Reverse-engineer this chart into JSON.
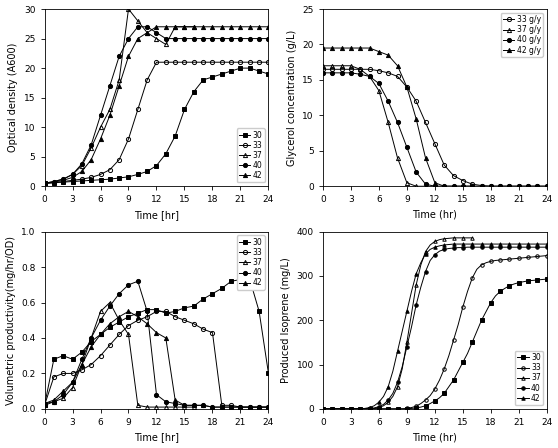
{
  "od_data": {
    "30": {
      "time": [
        0,
        1,
        2,
        3,
        4,
        5,
        6,
        7,
        8,
        9,
        10,
        11,
        12,
        13,
        14,
        15,
        16,
        17,
        18,
        19,
        20,
        21,
        22,
        23,
        24
      ],
      "od": [
        0.5,
        0.6,
        0.7,
        0.8,
        0.9,
        1.0,
        1.1,
        1.2,
        1.4,
        1.6,
        2.0,
        2.5,
        3.5,
        5.5,
        8.5,
        13,
        16,
        18,
        18.5,
        19,
        19.5,
        20,
        20,
        19.5,
        19
      ]
    },
    "33": {
      "time": [
        0,
        1,
        2,
        3,
        4,
        5,
        6,
        7,
        8,
        9,
        10,
        11,
        12,
        13,
        14,
        15,
        16,
        17,
        18,
        19,
        20,
        21,
        22,
        23,
        24
      ],
      "od": [
        0.5,
        0.6,
        0.8,
        1.0,
        1.2,
        1.5,
        2.0,
        2.8,
        4.5,
        8.0,
        13,
        18,
        21,
        21,
        21,
        21,
        21,
        21,
        21,
        21,
        21,
        21,
        21,
        21,
        21
      ]
    },
    "37": {
      "time": [
        0,
        1,
        2,
        3,
        4,
        5,
        6,
        7,
        8,
        9,
        10,
        11,
        12,
        13,
        14,
        15,
        16
      ],
      "od": [
        0.5,
        0.8,
        1.2,
        2.0,
        3.5,
        6.5,
        10,
        13,
        18,
        30,
        28,
        26,
        25,
        24,
        27,
        27,
        27
      ]
    },
    "40": {
      "time": [
        0,
        1,
        2,
        3,
        4,
        5,
        6,
        7,
        8,
        9,
        10,
        11,
        12,
        13,
        14,
        15,
        16,
        17,
        18,
        19,
        20,
        21,
        22,
        23,
        24
      ],
      "od": [
        0.5,
        0.8,
        1.2,
        2.0,
        3.8,
        7.0,
        12,
        17,
        22,
        25,
        27,
        27,
        26,
        25,
        25,
        25,
        25,
        25,
        25,
        25,
        25,
        25,
        25,
        25,
        25
      ]
    },
    "42": {
      "time": [
        0,
        1,
        2,
        3,
        4,
        5,
        6,
        7,
        8,
        9,
        10,
        11,
        12,
        13,
        14,
        15,
        16,
        17,
        18,
        19,
        20,
        21,
        22,
        23,
        24
      ],
      "od": [
        0.5,
        0.7,
        1.0,
        1.5,
        2.5,
        4.5,
        8.0,
        12,
        17,
        22,
        25,
        26,
        27,
        27,
        27,
        27,
        27,
        27,
        27,
        27,
        27,
        27,
        27,
        27,
        27
      ]
    }
  },
  "glycerol_data": {
    "33": {
      "time": [
        0,
        1,
        2,
        3,
        4,
        5,
        6,
        7,
        8,
        9,
        10,
        11,
        12,
        13,
        14,
        15,
        16,
        17,
        18,
        19,
        20,
        21,
        22,
        23,
        24
      ],
      "gly": [
        16.5,
        16.5,
        16.5,
        16.5,
        16.5,
        16.5,
        16.3,
        16.0,
        15.5,
        14.0,
        12.0,
        9.0,
        6.0,
        3.0,
        1.5,
        0.8,
        0.3,
        0.1,
        0.0,
        0.0,
        0.0,
        0.0,
        0.0,
        0.0,
        0.0
      ]
    },
    "37": {
      "time": [
        0,
        1,
        2,
        3,
        4,
        5,
        6,
        7,
        8,
        9,
        10,
        11,
        12,
        13,
        14,
        15,
        16
      ],
      "gly": [
        17.0,
        17.0,
        17.0,
        17.0,
        16.5,
        15.5,
        13.5,
        9.0,
        4.0,
        0.5,
        0.0,
        0.0,
        0.0,
        0.0,
        0.0,
        0.0,
        0.0
      ]
    },
    "40": {
      "time": [
        0,
        1,
        2,
        3,
        4,
        5,
        6,
        7,
        8,
        9,
        10,
        11,
        12,
        13,
        14,
        15,
        16,
        17,
        18,
        19,
        20,
        21,
        22,
        23,
        24
      ],
      "gly": [
        16.0,
        16.0,
        16.0,
        16.0,
        15.8,
        15.5,
        14.5,
        12.0,
        9.0,
        5.5,
        2.0,
        0.3,
        0.0,
        0.0,
        0.0,
        0.0,
        0.0,
        0.0,
        0.0,
        0.0,
        0.0,
        0.0,
        0.0,
        0.0,
        0.0
      ]
    },
    "42": {
      "time": [
        0,
        1,
        2,
        3,
        4,
        5,
        6,
        7,
        8,
        9,
        10,
        11,
        12,
        13,
        14,
        15,
        16,
        17,
        18,
        19,
        20,
        21,
        22,
        23,
        24
      ],
      "gly": [
        19.5,
        19.5,
        19.5,
        19.5,
        19.5,
        19.5,
        19.0,
        18.5,
        17.0,
        14.0,
        9.5,
        4.0,
        0.5,
        0.0,
        0.0,
        0.0,
        0.0,
        0.0,
        0.0,
        0.0,
        0.0,
        0.0,
        0.0,
        0.0,
        0.0
      ]
    }
  },
  "vp_data": {
    "30": {
      "time": [
        0,
        1,
        2,
        3,
        4,
        5,
        6,
        7,
        8,
        9,
        10,
        11,
        12,
        13,
        14,
        15,
        16,
        17,
        18,
        19,
        20,
        21,
        22,
        23,
        24
      ],
      "vp": [
        0.02,
        0.28,
        0.3,
        0.28,
        0.32,
        0.38,
        0.42,
        0.46,
        0.49,
        0.52,
        0.54,
        0.56,
        0.56,
        0.54,
        0.55,
        0.57,
        0.58,
        0.62,
        0.65,
        0.68,
        0.72,
        0.73,
        0.73,
        0.55,
        0.2
      ]
    },
    "33": {
      "time": [
        0,
        1,
        2,
        3,
        4,
        5,
        6,
        7,
        8,
        9,
        10,
        11,
        12,
        13,
        14,
        15,
        16,
        17,
        18,
        19,
        20,
        21,
        22,
        23,
        24
      ],
      "vp": [
        0.02,
        0.18,
        0.2,
        0.2,
        0.22,
        0.25,
        0.3,
        0.36,
        0.42,
        0.47,
        0.5,
        0.52,
        0.55,
        0.55,
        0.52,
        0.5,
        0.48,
        0.45,
        0.43,
        0.02,
        0.02,
        0.01,
        0.01,
        0.01,
        0.01
      ]
    },
    "37": {
      "time": [
        0,
        1,
        2,
        3,
        4,
        5,
        6,
        7,
        8,
        9,
        10,
        11,
        12,
        13,
        14,
        15,
        16
      ],
      "vp": [
        0.02,
        0.04,
        0.06,
        0.12,
        0.25,
        0.4,
        0.55,
        0.6,
        0.5,
        0.42,
        0.02,
        0.01,
        0.01,
        0.01,
        0.01,
        0.01,
        0.01
      ]
    },
    "40": {
      "time": [
        0,
        1,
        2,
        3,
        4,
        5,
        6,
        7,
        8,
        9,
        10,
        11,
        12,
        13,
        14,
        15,
        16,
        17,
        18,
        19,
        20,
        21,
        22,
        23,
        24
      ],
      "vp": [
        0.03,
        0.04,
        0.08,
        0.15,
        0.28,
        0.4,
        0.5,
        0.58,
        0.65,
        0.7,
        0.72,
        0.55,
        0.08,
        0.04,
        0.03,
        0.02,
        0.02,
        0.02,
        0.01,
        0.01,
        0.01,
        0.01,
        0.01,
        0.01,
        0.01
      ]
    },
    "42": {
      "time": [
        0,
        1,
        2,
        3,
        4,
        5,
        6,
        7,
        8,
        9,
        10,
        11,
        12,
        13,
        14,
        15,
        16,
        17,
        18,
        19,
        20,
        21,
        22,
        23,
        24
      ],
      "vp": [
        0.03,
        0.05,
        0.1,
        0.15,
        0.25,
        0.35,
        0.42,
        0.48,
        0.52,
        0.55,
        0.52,
        0.48,
        0.43,
        0.4,
        0.05,
        0.02,
        0.02,
        0.02,
        0.01,
        0.01,
        0.01,
        0.01,
        0.01,
        0.01,
        0.01
      ]
    }
  },
  "isoprene_data": {
    "30": {
      "time": [
        0,
        0.5,
        1,
        1.5,
        2,
        2.5,
        3,
        3.5,
        4,
        4.5,
        5,
        5.5,
        6,
        6.5,
        7,
        7.5,
        8,
        8.5,
        9,
        9.5,
        10,
        10.5,
        11,
        11.5,
        12,
        12.5,
        13,
        13.5,
        14,
        14.5,
        15,
        15.5,
        16,
        16.5,
        17,
        17.5,
        18,
        18.5,
        19,
        19.5,
        20,
        20.5,
        21,
        21.5,
        22,
        22.5,
        23,
        23.5,
        24
      ],
      "iso": [
        0,
        0,
        0,
        0,
        0,
        0,
        0,
        0,
        0,
        0,
        0,
        0,
        0,
        0,
        0,
        0,
        0,
        0,
        0,
        1,
        2,
        4,
        7,
        12,
        18,
        25,
        35,
        50,
        65,
        85,
        105,
        125,
        150,
        175,
        200,
        220,
        240,
        255,
        265,
        272,
        278,
        282,
        285,
        287,
        289,
        290,
        291,
        292,
        293
      ]
    },
    "33": {
      "time": [
        0,
        0.5,
        1,
        1.5,
        2,
        2.5,
        3,
        3.5,
        4,
        4.5,
        5,
        5.5,
        6,
        6.5,
        7,
        7.5,
        8,
        8.5,
        9,
        9.5,
        10,
        10.5,
        11,
        11.5,
        12,
        12.5,
        13,
        13.5,
        14,
        14.5,
        15,
        15.5,
        16,
        16.5,
        17,
        17.5,
        18,
        18.5,
        19,
        19.5,
        20,
        20.5,
        21,
        21.5,
        22,
        22.5,
        23,
        23.5,
        24
      ],
      "iso": [
        0,
        0,
        0,
        0,
        0,
        0,
        0,
        0,
        0,
        0,
        0,
        0,
        0,
        0,
        0,
        0,
        0,
        0,
        1,
        3,
        6,
        12,
        20,
        30,
        45,
        65,
        90,
        120,
        155,
        190,
        230,
        265,
        295,
        315,
        325,
        330,
        333,
        335,
        336,
        337,
        338,
        339,
        340,
        341,
        342,
        343,
        344,
        345,
        346
      ]
    },
    "37": {
      "time": [
        0,
        0.5,
        1,
        1.5,
        2,
        2.5,
        3,
        3.5,
        4,
        4.5,
        5,
        5.5,
        6,
        6.5,
        7,
        7.5,
        8,
        8.5,
        9,
        9.5,
        10,
        10.5,
        11,
        11.5,
        12,
        12.5,
        13,
        13.5,
        14,
        14.5,
        15,
        15.5,
        16
      ],
      "iso": [
        0,
        0,
        0,
        0,
        0,
        0,
        0,
        0,
        0,
        0,
        0,
        1,
        3,
        7,
        15,
        28,
        50,
        90,
        150,
        215,
        280,
        325,
        355,
        370,
        378,
        382,
        384,
        385,
        386,
        386,
        386,
        386,
        386
      ]
    },
    "40": {
      "time": [
        0,
        0.5,
        1,
        1.5,
        2,
        2.5,
        3,
        3.5,
        4,
        4.5,
        5,
        5.5,
        6,
        6.5,
        7,
        7.5,
        8,
        8.5,
        9,
        9.5,
        10,
        10.5,
        11,
        11.5,
        12,
        12.5,
        13,
        13.5,
        14,
        14.5,
        15,
        15.5,
        16,
        16.5,
        17,
        17.5,
        18,
        18.5,
        19,
        19.5,
        20,
        20.5,
        21,
        21.5,
        22,
        22.5,
        23,
        23.5,
        24
      ],
      "iso": [
        0,
        0,
        0,
        0,
        0,
        0,
        0,
        0,
        0,
        0,
        1,
        2,
        5,
        10,
        20,
        35,
        60,
        95,
        140,
        185,
        235,
        275,
        310,
        335,
        348,
        356,
        360,
        362,
        363,
        364,
        364,
        365,
        365,
        365,
        365,
        365,
        365,
        365,
        365,
        365,
        365,
        365,
        365,
        365,
        365,
        365,
        365,
        365,
        365
      ]
    },
    "42": {
      "time": [
        0,
        0.5,
        1,
        1.5,
        2,
        2.5,
        3,
        3.5,
        4,
        4.5,
        5,
        5.5,
        6,
        6.5,
        7,
        7.5,
        8,
        8.5,
        9,
        9.5,
        10,
        10.5,
        11,
        11.5,
        12,
        12.5,
        13,
        13.5,
        14,
        14.5,
        15,
        15.5,
        16,
        16.5,
        17,
        17.5,
        18,
        18.5,
        19,
        19.5,
        20,
        20.5,
        21,
        21.5,
        22,
        22.5,
        23,
        23.5,
        24
      ],
      "iso": [
        0,
        0,
        0,
        0,
        0,
        0,
        0,
        0,
        0,
        1,
        3,
        7,
        15,
        28,
        50,
        85,
        130,
        175,
        220,
        265,
        305,
        330,
        350,
        360,
        365,
        368,
        370,
        371,
        372,
        372,
        372,
        372,
        372,
        372,
        372,
        372,
        372,
        372,
        372,
        372,
        372,
        372,
        372,
        372,
        372,
        372,
        372,
        372,
        372
      ]
    }
  },
  "temps": [
    "30",
    "33",
    "37",
    "40",
    "42"
  ],
  "styles": {
    "30": {
      "marker": "s",
      "fillstyle": "full",
      "color": "black",
      "label": "30"
    },
    "33": {
      "marker": "o",
      "fillstyle": "none",
      "color": "black",
      "label": "33"
    },
    "37": {
      "marker": "^",
      "fillstyle": "none",
      "color": "black",
      "label": "37"
    },
    "40": {
      "marker": "o",
      "fillstyle": "full",
      "color": "black",
      "label": "40"
    },
    "42": {
      "marker": "^",
      "fillstyle": "full",
      "color": "black",
      "label": "42"
    }
  },
  "glycerol_styles": {
    "33": {
      "marker": "o",
      "fillstyle": "none",
      "color": "black",
      "label": "33 g/y"
    },
    "37": {
      "marker": "^",
      "fillstyle": "none",
      "color": "black",
      "label": "37 g/y"
    },
    "40": {
      "marker": "o",
      "fillstyle": "full",
      "color": "black",
      "label": "40 g/y"
    },
    "42": {
      "marker": "^",
      "fillstyle": "full",
      "color": "black",
      "label": "42 g/y"
    }
  }
}
